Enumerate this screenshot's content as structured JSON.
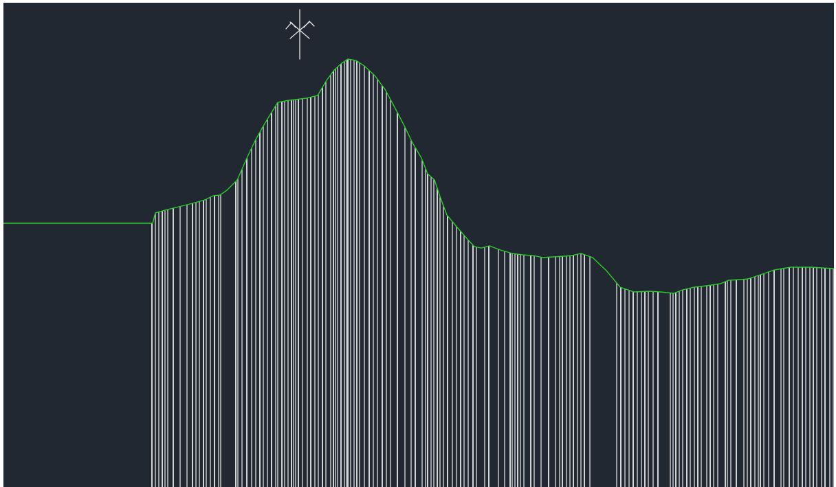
{
  "drawing": {
    "background_color": "#222831",
    "frame_color": "#ffffff",
    "profile_color": "#2bcc2b",
    "line_color": "#ffffff",
    "symbol_color": "#e6e6e6",
    "ucs_icon": "ucs-compass-icon"
  }
}
